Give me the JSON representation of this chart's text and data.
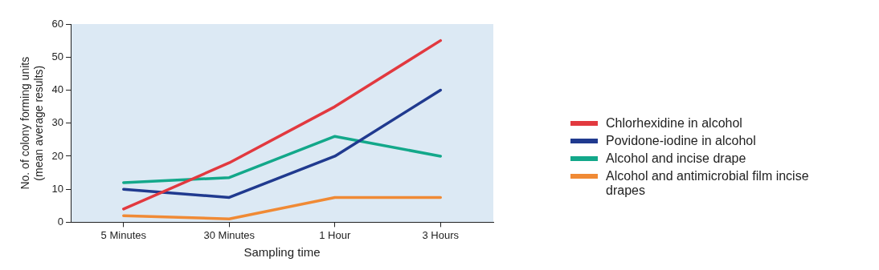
{
  "chart_data": {
    "type": "line",
    "xlabel": "Sampling time",
    "ylabel": "No. of colony forming units\n(mean average results)",
    "categories": [
      "5 Minutes",
      "30 Minutes",
      "1 Hour",
      "3 Hours"
    ],
    "ylim": [
      0,
      60
    ],
    "yticks": [
      0,
      10,
      20,
      30,
      40,
      50,
      60
    ],
    "grid": false,
    "legend": "right",
    "marker": "none",
    "line_style": "solid",
    "series": [
      {
        "name": "Chlorhexidine in alcohol",
        "color": "#e2393f",
        "values": [
          4,
          18,
          35,
          55
        ]
      },
      {
        "name": "Povidone-iodine in alcohol",
        "color": "#203a8f",
        "values": [
          10,
          7.5,
          20,
          40
        ]
      },
      {
        "name": "Alcohol and incise drape",
        "color": "#13a88a",
        "values": [
          12,
          13.5,
          26,
          20
        ]
      },
      {
        "name": "Alcohol and antimicrobial film incise drapes",
        "color": "#f08a35",
        "values": [
          2,
          1,
          7.5,
          7.5
        ]
      }
    ]
  }
}
